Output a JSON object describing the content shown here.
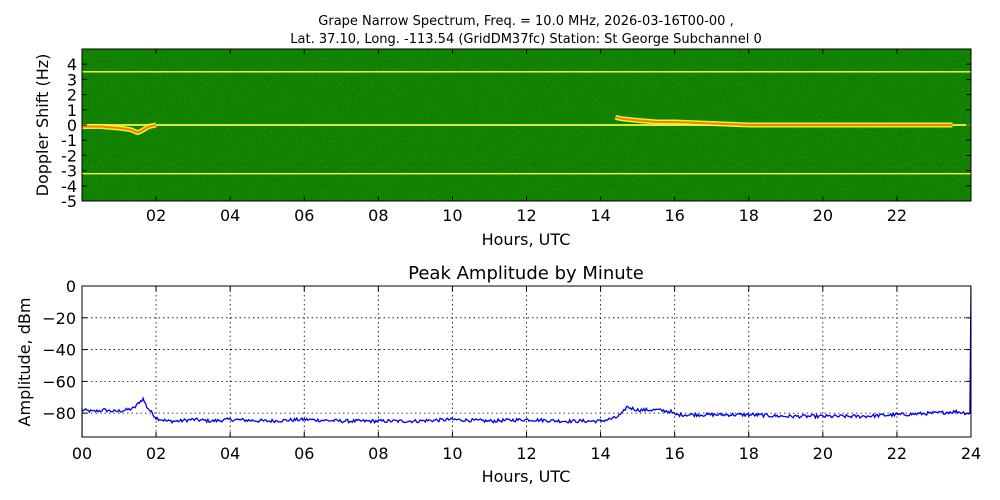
{
  "chart_data": [
    {
      "type": "heatmap",
      "title_line1": "Grape Narrow Spectrum, Freq. = 10.0 MHz, 2026-03-16T00-00 ,",
      "title_line2": "Lat.  37.10, Long. -113.54 (GridDM37fc) Station: St George Subchannel 0",
      "xlabel": "Hours, UTC",
      "ylabel": "Doppler Shift (Hz)",
      "xlim": [
        0,
        24
      ],
      "ylim": [
        -5,
        5
      ],
      "x_ticks": [
        "02",
        "04",
        "06",
        "08",
        "10",
        "12",
        "14",
        "16",
        "18",
        "20",
        "22"
      ],
      "x_tick_values": [
        2,
        4,
        6,
        8,
        10,
        12,
        14,
        16,
        18,
        20,
        22
      ],
      "y_ticks": [
        "4",
        "3",
        "2",
        "1",
        "0",
        "-1",
        "-2",
        "-3",
        "-4",
        "-5"
      ],
      "y_tick_values": [
        4,
        3,
        2,
        1,
        0,
        -1,
        -2,
        -3,
        -4,
        -5
      ],
      "colors": {
        "background": "#118000",
        "signal": "#ffff33",
        "peak": "#ff7a00"
      },
      "features": [
        {
          "kind": "constant-line",
          "doppler_hz": 3.5
        },
        {
          "kind": "constant-line",
          "doppler_hz": -3.2
        },
        {
          "kind": "carrier",
          "doppler_hz": 0.0
        }
      ],
      "carrier_trace": [
        [
          0.0,
          -0.1
        ],
        [
          0.5,
          -0.1
        ],
        [
          1.0,
          -0.2
        ],
        [
          1.3,
          -0.3
        ],
        [
          1.5,
          -0.5
        ],
        [
          1.6,
          -0.4
        ],
        [
          1.8,
          -0.1
        ],
        [
          2.0,
          0.0
        ],
        [
          14.4,
          0.5
        ],
        [
          14.6,
          0.4
        ],
        [
          15.0,
          0.3
        ],
        [
          15.5,
          0.2
        ],
        [
          16.0,
          0.2
        ],
        [
          17.0,
          0.1
        ],
        [
          18.0,
          0.0
        ],
        [
          20.0,
          0.0
        ],
        [
          22.0,
          0.0
        ],
        [
          23.5,
          0.0
        ]
      ]
    },
    {
      "type": "line",
      "title": "Peak Amplitude by Minute",
      "xlabel": "Hours, UTC",
      "ylabel": "Amplitude, dBm",
      "xlim": [
        0,
        24
      ],
      "ylim": [
        -95,
        0
      ],
      "x_ticks": [
        "00",
        "02",
        "04",
        "06",
        "08",
        "10",
        "12",
        "14",
        "16",
        "18",
        "20",
        "22",
        "24"
      ],
      "x_tick_values": [
        0,
        2,
        4,
        6,
        8,
        10,
        12,
        14,
        16,
        18,
        20,
        22,
        24
      ],
      "y_ticks": [
        "0",
        "−20",
        "−40",
        "−60",
        "−80"
      ],
      "y_tick_values": [
        0,
        -20,
        -40,
        -60,
        -80
      ],
      "grid": true,
      "line_color": "#0000ee",
      "series": [
        {
          "points": [
            [
              0.0,
              -78
            ],
            [
              0.3,
              -79
            ],
            [
              0.6,
              -78
            ],
            [
              0.9,
              -79
            ],
            [
              1.2,
              -78
            ],
            [
              1.4,
              -77
            ],
            [
              1.55,
              -73
            ],
            [
              1.65,
              -71
            ],
            [
              1.75,
              -76
            ],
            [
              2.0,
              -83
            ],
            [
              2.3,
              -85
            ],
            [
              2.6,
              -85
            ],
            [
              3.0,
              -84
            ],
            [
              3.5,
              -85
            ],
            [
              4.0,
              -84
            ],
            [
              5.0,
              -85
            ],
            [
              6.0,
              -84
            ],
            [
              7.0,
              -85
            ],
            [
              8.0,
              -85
            ],
            [
              9.0,
              -85
            ],
            [
              10.0,
              -84
            ],
            [
              11.0,
              -85
            ],
            [
              12.0,
              -84
            ],
            [
              13.0,
              -85
            ],
            [
              14.0,
              -85
            ],
            [
              14.4,
              -83
            ],
            [
              14.6,
              -80
            ],
            [
              14.7,
              -76
            ],
            [
              15.0,
              -78
            ],
            [
              15.5,
              -78
            ],
            [
              15.9,
              -79
            ],
            [
              16.0,
              -81
            ],
            [
              17.0,
              -81
            ],
            [
              18.0,
              -81
            ],
            [
              19.0,
              -82
            ],
            [
              20.0,
              -82
            ],
            [
              21.0,
              -82
            ],
            [
              22.0,
              -81
            ],
            [
              23.0,
              -80
            ],
            [
              23.6,
              -79
            ],
            [
              23.9,
              -80
            ],
            [
              23.97,
              -80
            ],
            [
              24.0,
              0
            ]
          ]
        }
      ]
    }
  ]
}
